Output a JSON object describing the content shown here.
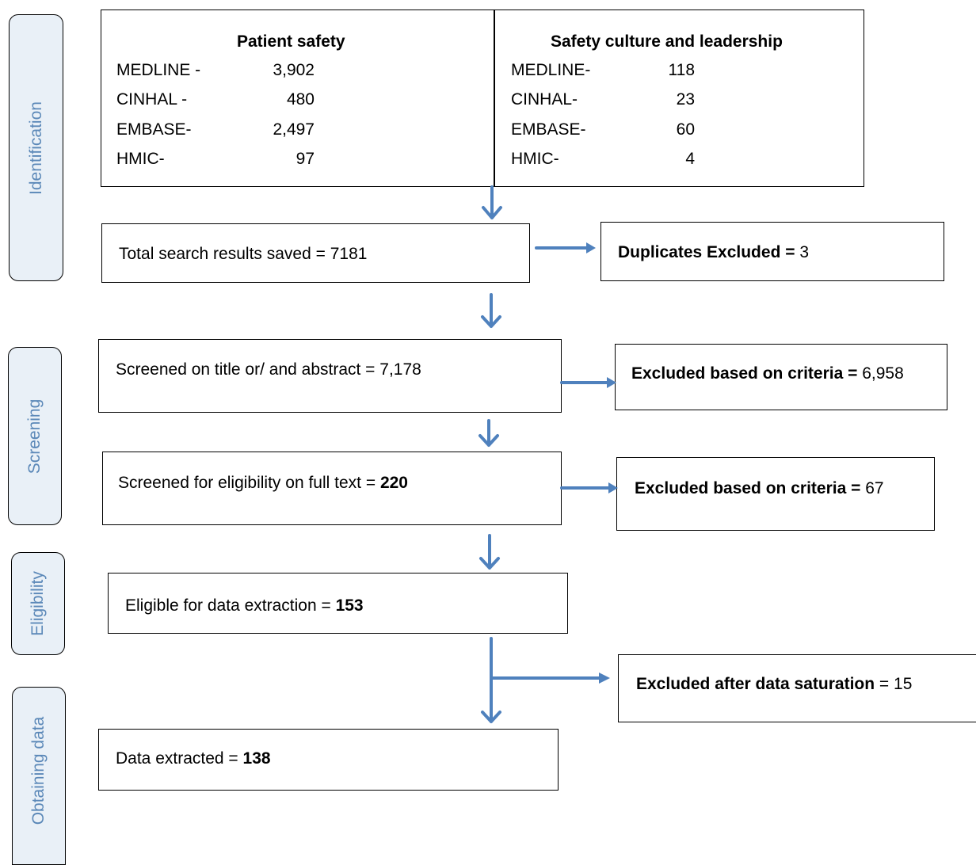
{
  "stages": {
    "identification": "Identification",
    "screening": "Screening",
    "eligibility": "Eligibility",
    "obtaining": "Obtaining data"
  },
  "identification": {
    "patient_safety": {
      "heading": "Patient safety",
      "rows": [
        {
          "db": "MEDLINE -",
          "count": "3,902"
        },
        {
          "db": "CINHAL -",
          "count": "480"
        },
        {
          "db": "EMBASE-",
          "count": "2,497"
        },
        {
          "db": "HMIC-",
          "count": "97"
        }
      ]
    },
    "safety_culture": {
      "heading": "Safety culture and leadership",
      "rows": [
        {
          "db": "MEDLINE-",
          "count": "118"
        },
        {
          "db": "CINHAL-",
          "count": "23"
        },
        {
          "db": "EMBASE-",
          "count": "60"
        },
        {
          "db": "HMIC-",
          "count": "4"
        }
      ]
    }
  },
  "flow": {
    "total": {
      "label": "Total search results saved = ",
      "value": "7181"
    },
    "duplicates": {
      "label": "Duplicates Excluded = ",
      "value": "3"
    },
    "screened_title": {
      "label": "Screened on title or/ and abstract = ",
      "value": "7,178"
    },
    "excluded_criteria_1": {
      "label": "Excluded based on criteria = ",
      "value": "6,958"
    },
    "screened_full": {
      "label": "Screened for eligibility on full text = ",
      "value": "220"
    },
    "excluded_criteria_2": {
      "label": "Excluded based on criteria = ",
      "value": "67"
    },
    "eligible": {
      "label": "Eligible for data extraction = ",
      "value": "153"
    },
    "excluded_saturation": {
      "label": "Excluded after data saturation",
      "value": " = 15"
    },
    "extracted": {
      "label": "Data extracted = ",
      "value": "138"
    }
  },
  "colors": {
    "arrow": "#4f81bd",
    "stage_text": "#5b88b8",
    "stage_fill": "#e9f0f7"
  }
}
